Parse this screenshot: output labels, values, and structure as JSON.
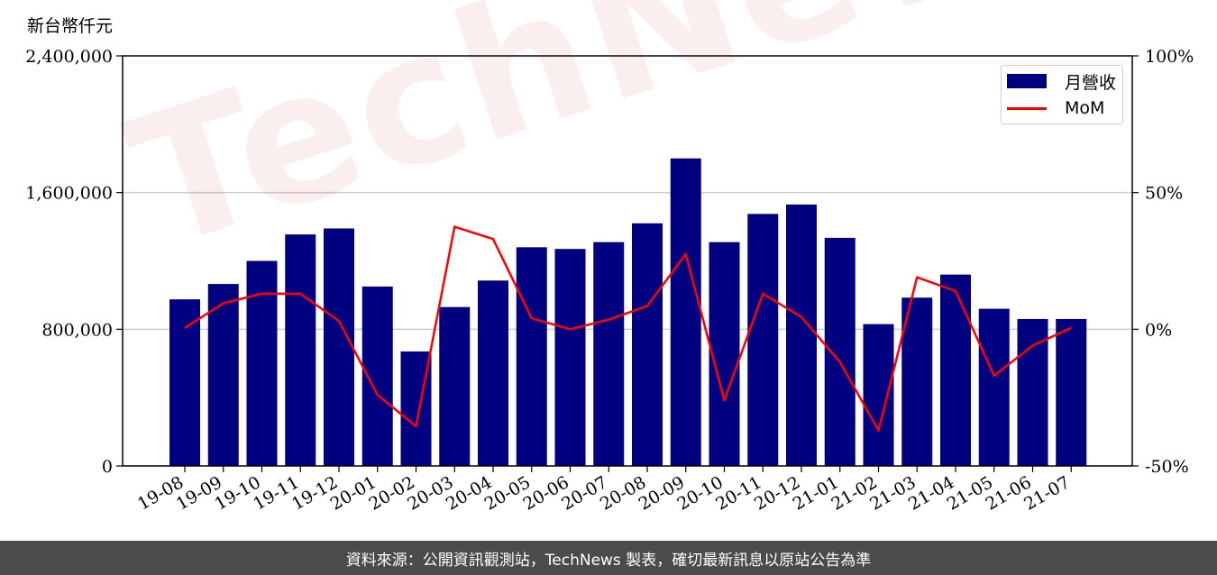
{
  "unit_label": "新台幣仟元",
  "footer_text": "資料來源：公開資訊觀測站，TechNews 製表，確切最新訊息以原站公告為準",
  "watermark": "TechNews",
  "legend": {
    "bar_label": "月營收",
    "line_label": "MoM"
  },
  "colors": {
    "bar": "#000080",
    "line": "#ff0000",
    "grid": "#cccccc",
    "footer_bg": "#4b4b4b"
  },
  "chart_data": {
    "type": "bar",
    "categories": [
      "19-08",
      "19-09",
      "19-10",
      "19-11",
      "19-12",
      "20-01",
      "20-02",
      "20-03",
      "20-04",
      "20-05",
      "20-06",
      "20-07",
      "20-08",
      "20-09",
      "20-10",
      "20-11",
      "20-12",
      "21-01",
      "21-02",
      "21-03",
      "21-04",
      "21-05",
      "21-06",
      "21-07"
    ],
    "series": [
      {
        "name": "月營收",
        "type": "bar",
        "axis": "left",
        "values": [
          975000,
          1065000,
          1200000,
          1355000,
          1390000,
          1050000,
          670000,
          930000,
          1085000,
          1280000,
          1270000,
          1310000,
          1420000,
          1800000,
          1310000,
          1475000,
          1530000,
          1335000,
          830000,
          985000,
          1120000,
          920000,
          860000,
          860000
        ]
      },
      {
        "name": "MoM",
        "type": "line",
        "axis": "right",
        "values": [
          0.5,
          9.5,
          13,
          13,
          3,
          -24,
          -35.5,
          37.5,
          33,
          4,
          0,
          3.5,
          8.5,
          27.5,
          -26,
          13,
          4.5,
          -12,
          -37,
          19,
          14,
          -17,
          -6,
          0.5
        ]
      }
    ],
    "left_axis": {
      "ylim": [
        0,
        2400000
      ],
      "ticks": [
        "0",
        "800,000",
        "1,600,000",
        "2,400,000"
      ],
      "tick_values": [
        0,
        800000,
        1600000,
        2400000
      ]
    },
    "right_axis": {
      "ylim": [
        -50,
        100
      ],
      "ticks": [
        "-50%",
        "0%",
        "50%",
        "100%"
      ],
      "tick_values": [
        -50,
        0,
        50,
        100
      ]
    },
    "grid": true,
    "legend_position": "top-right"
  }
}
